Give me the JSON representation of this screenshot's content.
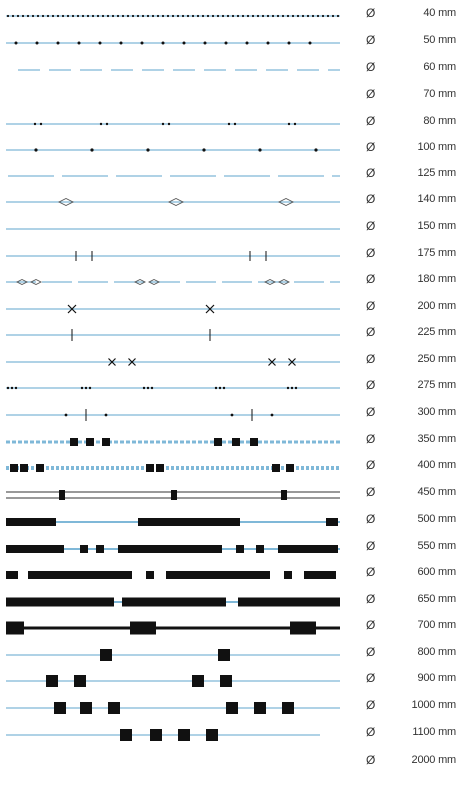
{
  "diameter_symbol": "Ø",
  "line_color": "#7fb8d8",
  "mark_color": "#111111",
  "pipe_sizes": [
    {
      "size": "40 mm",
      "style": "dense-dots"
    },
    {
      "size": "50 mm",
      "style": "line-dots"
    },
    {
      "size": "60 mm",
      "style": "dashes"
    },
    {
      "size": "70 mm",
      "style": "blank"
    },
    {
      "size": "80 mm",
      "style": "double-dots"
    },
    {
      "size": "100 mm",
      "style": "single-dot"
    },
    {
      "size": "125 mm",
      "style": "long-dash"
    },
    {
      "size": "140 mm",
      "style": "diamond"
    },
    {
      "size": "150 mm",
      "style": "plain"
    },
    {
      "size": "175 mm",
      "style": "double-cross"
    },
    {
      "size": "180 mm",
      "style": "double-diamond"
    },
    {
      "size": "200 mm",
      "style": "x-mark"
    },
    {
      "size": "225 mm",
      "style": "plus-mark"
    },
    {
      "size": "250 mm",
      "style": "double-x"
    },
    {
      "size": "275 mm",
      "style": "triple-dot"
    },
    {
      "size": "300 mm",
      "style": "dot-plus-dot"
    },
    {
      "size": "350 mm",
      "style": "triple-square"
    },
    {
      "size": "400 mm",
      "style": "heavy-double"
    },
    {
      "size": "450 mm",
      "style": "double-line-tick"
    },
    {
      "size": "500 mm",
      "style": "long-bars"
    },
    {
      "size": "550 mm",
      "style": "bars-with-blocks"
    },
    {
      "size": "600 mm",
      "style": "solid-blocks"
    },
    {
      "size": "650 mm",
      "style": "thick-bar"
    },
    {
      "size": "700 mm",
      "style": "bar-segments"
    },
    {
      "size": "800 mm",
      "style": "single-square"
    },
    {
      "size": "900 mm",
      "style": "double-square"
    },
    {
      "size": "1000 mm",
      "style": "triple-square-large"
    },
    {
      "size": "1100 mm",
      "style": "quad-square"
    },
    {
      "size": "2000 mm",
      "style": "none"
    }
  ]
}
